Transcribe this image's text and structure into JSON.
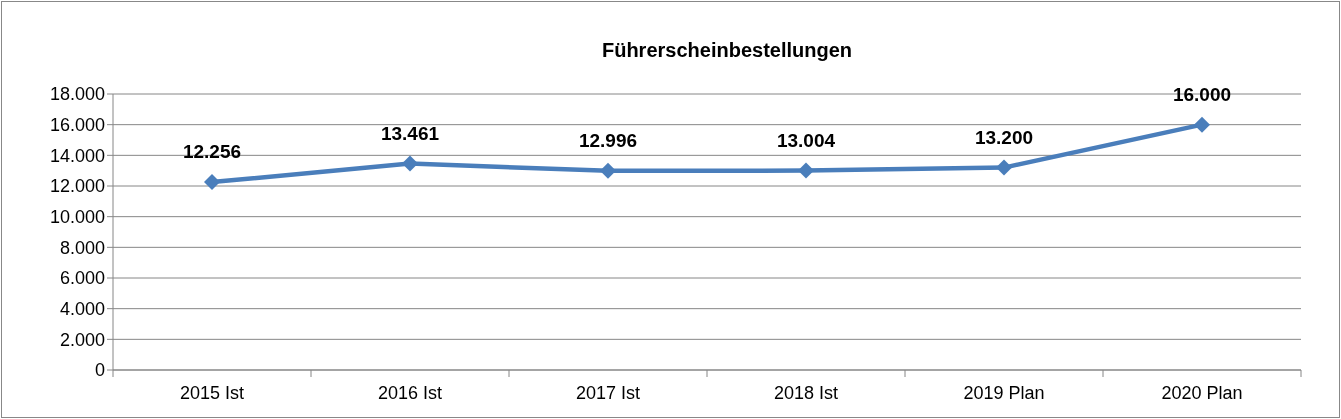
{
  "chart_data": {
    "type": "line",
    "title": "Führerscheinbestellungen",
    "categories": [
      "2015 Ist",
      "2016 Ist",
      "2017 Ist",
      "2018 Ist",
      "2019 Plan",
      "2020 Plan"
    ],
    "series": [
      {
        "color": "#4a7ebb",
        "values": [
          12256,
          13461,
          12996,
          13004,
          13200,
          16000
        ],
        "value_labels": [
          "12.256",
          "13.461",
          "12.996",
          "13.004",
          "13.200",
          "16.000"
        ]
      }
    ],
    "ylim": [
      0,
      18000
    ],
    "yticks": [
      {
        "value": 0,
        "label": "0"
      },
      {
        "value": 2000,
        "label": "2.000"
      },
      {
        "value": 4000,
        "label": "4.000"
      },
      {
        "value": 6000,
        "label": "6.000"
      },
      {
        "value": 8000,
        "label": "8.000"
      },
      {
        "value": 10000,
        "label": "10.000"
      },
      {
        "value": 12000,
        "label": "12.000"
      },
      {
        "value": 14000,
        "label": "14.000"
      },
      {
        "value": 16000,
        "label": "16.000"
      },
      {
        "value": 18000,
        "label": "18.000"
      }
    ],
    "grid": "y",
    "marker": "diamond",
    "line_style": "solid"
  }
}
